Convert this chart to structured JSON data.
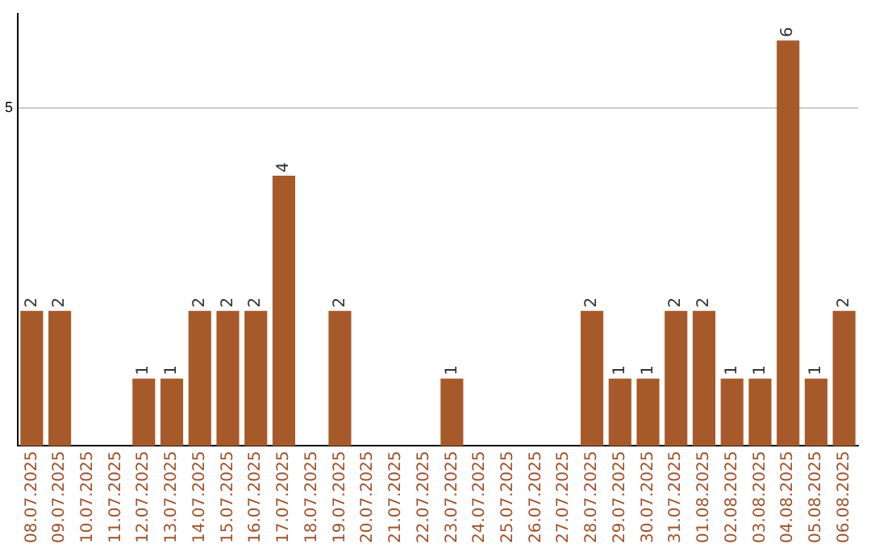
{
  "chart_data": {
    "type": "bar",
    "categories": [
      "08.07.2025",
      "09.07.2025",
      "10.07.2025",
      "11.07.2025",
      "12.07.2025",
      "13.07.2025",
      "14.07.2025",
      "15.07.2025",
      "16.07.2025",
      "17.07.2025",
      "18.07.2025",
      "19.07.2025",
      "20.07.2025",
      "21.07.2025",
      "22.07.2025",
      "23.07.2025",
      "24.07.2025",
      "25.07.2025",
      "26.07.2025",
      "27.07.2025",
      "28.07.2025",
      "29.07.2025",
      "30.07.2025",
      "31.07.2025",
      "01.08.2025",
      "02.08.2025",
      "03.08.2025",
      "04.08.2025",
      "05.08.2025",
      "06.08.2025"
    ],
    "values": [
      2,
      2,
      0,
      0,
      1,
      1,
      2,
      2,
      2,
      4,
      0,
      2,
      0,
      0,
      0,
      1,
      0,
      0,
      0,
      0,
      2,
      1,
      1,
      2,
      2,
      1,
      1,
      6,
      1,
      2
    ],
    "value_labels": [
      "2",
      "2",
      null,
      null,
      "1",
      "1",
      "2",
      "2",
      "2",
      "4",
      null,
      "2",
      null,
      null,
      null,
      "1",
      null,
      null,
      null,
      null,
      "2",
      "1",
      "1",
      "2",
      "2",
      "1",
      "1",
      "6",
      "1",
      "2"
    ],
    "color": "#a65a2a",
    "ylim": [
      0,
      6.4
    ],
    "yticks": [
      5
    ],
    "grid": "y",
    "legend": false
  }
}
